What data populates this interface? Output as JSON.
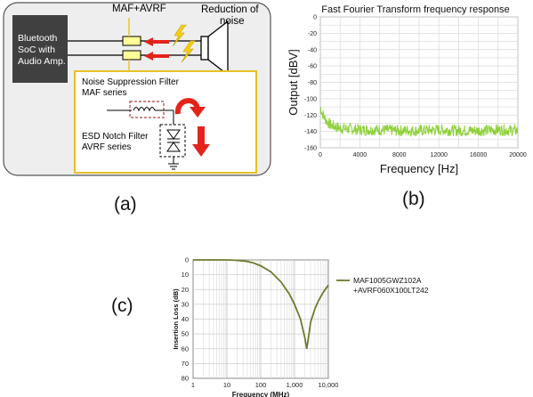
{
  "panel_a": {
    "soc_label_lines": [
      "Bluetooth",
      "SoC with",
      "Audio Amp."
    ],
    "filter_label": "MAF+AVRF",
    "noise_label_lines": [
      "Reduction of",
      "noise"
    ],
    "nsf_label_lines": [
      "Noise Suppression Filter",
      "MAF series"
    ],
    "esd_label_lines": [
      "ESD Notch Filter",
      "AVRF series"
    ],
    "colors": {
      "soc_box": "#404040",
      "filter": "#e8c02a",
      "arrow": "#e4231a",
      "bg": "#eeeeee",
      "frame": "#555555"
    },
    "icons": [
      "lightning-icon",
      "speaker-icon",
      "inductor-icon",
      "tvs-diode-icon",
      "ground-icon",
      "curved-arrow-icon",
      "down-arrow-icon"
    ]
  },
  "panel_b": {
    "chart_data": {
      "type": "line",
      "title": "Fast Fourier Transform frequency response",
      "xlabel": "Frequency [Hz]",
      "ylabel": "Output [dBV]",
      "xlim": [
        0,
        20000
      ],
      "ylim": [
        -160,
        0
      ],
      "xticks": [
        0,
        4000,
        8000,
        12000,
        16000,
        20000
      ],
      "yticks": [
        0,
        -20,
        -40,
        -60,
        -80,
        -100,
        -120,
        -140,
        -160
      ],
      "x": [
        0,
        200,
        500,
        1000,
        2000,
        4000,
        6000,
        8000,
        10000,
        12000,
        14000,
        16000,
        18000,
        20000
      ],
      "y": [
        -110,
        -118,
        -125,
        -132,
        -136,
        -138,
        -138,
        -139,
        -139,
        -138,
        -139,
        -139,
        -138,
        -139
      ],
      "grid": true,
      "series_color": "#8ed13a"
    }
  },
  "panel_c": {
    "chart_data": {
      "type": "line",
      "xscale": "log",
      "xlabel": "Frequency  (MHz)",
      "ylabel": "Insertion Loss  (dB)",
      "xlim": [
        1,
        10000
      ],
      "ylim": [
        0,
        80
      ],
      "y_inverted": true,
      "xtick_labels": [
        "1",
        "10",
        "100",
        "1,000",
        "10,000"
      ],
      "xticks": [
        1,
        10,
        100,
        1000,
        10000
      ],
      "yticks": [
        0,
        10,
        20,
        30,
        40,
        50,
        60,
        70,
        80
      ],
      "series": [
        {
          "name": "MAF1005GWZ102A +AVRF060X100LT242",
          "legend_lines": [
            "MAF1005GWZ102A",
            "+AVRF060X100LT242"
          ],
          "x": [
            1,
            10,
            20,
            40,
            60,
            100,
            200,
            400,
            700,
            1000,
            1500,
            2000,
            2300,
            2600,
            3000,
            4000,
            5000,
            7000,
            10000
          ],
          "y": [
            0,
            0,
            0.3,
            1,
            2,
            4,
            8,
            15,
            23,
            30,
            40,
            52,
            60,
            52,
            42,
            33,
            28,
            22,
            17
          ]
        }
      ],
      "grid": true,
      "series_color": "#6e7a2e"
    }
  },
  "labels": {
    "a": "(a)",
    "b": "(b)",
    "c": "(c)"
  }
}
